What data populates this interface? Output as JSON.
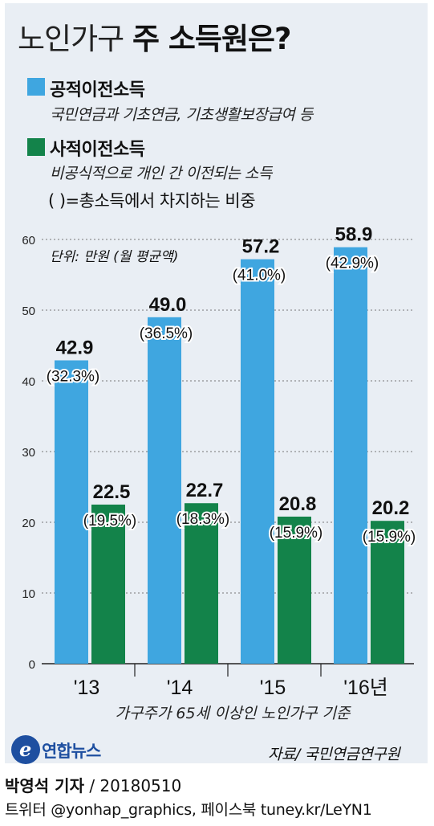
{
  "title": {
    "light": "노인가구",
    "bold": "주 소득원은?"
  },
  "legend": [
    {
      "name": "공적이전소득",
      "desc": "국민연금과 기초연금, 기초생활보장급여 등",
      "color": "#3fa6e0"
    },
    {
      "name": "사적이전소득",
      "desc": "비공식적으로 개인 간 이전되는 소득",
      "color": "#13834a"
    }
  ],
  "pct_note": "( )=총소득에서 차지하는 비중",
  "unit_note": "단위: 만원 (월 평균액)",
  "caption": "가구주가 65세 이상인 노인가구 기준",
  "source": "자료/ 국민연금연구원",
  "brand": "연합뉴스",
  "byline_name": "박영석 기자",
  "byline_date": "20180510",
  "social": "트위터 @yonhap_graphics, 페이스북 tuney.kr/LeYN1",
  "colors": {
    "public": "#3fa6e0",
    "private": "#13834a",
    "background": "#e9eef4"
  },
  "chart_data": {
    "type": "bar",
    "categories": [
      "'13",
      "'14",
      "'15",
      "'16년"
    ],
    "series": [
      {
        "name": "공적이전소득",
        "values": [
          42.9,
          49.0,
          57.2,
          58.9
        ],
        "value_labels": [
          "42.9",
          "49.0",
          "57.2",
          "58.9"
        ],
        "share_labels": [
          "(32.3%)",
          "(36.5%)",
          "(41.0%)",
          "(42.9%)"
        ]
      },
      {
        "name": "사적이전소득",
        "values": [
          22.5,
          22.7,
          20.8,
          20.2
        ],
        "value_labels": [
          "22.5",
          "22.7",
          "20.8",
          "20.2"
        ],
        "share_labels": [
          "(19.5%)",
          "(18.3%)",
          "(15.9%)",
          "(15.9%)"
        ]
      }
    ],
    "yticks": [
      0,
      10,
      20,
      30,
      40,
      50,
      60
    ],
    "ylim": [
      0,
      60
    ],
    "grid": true
  }
}
